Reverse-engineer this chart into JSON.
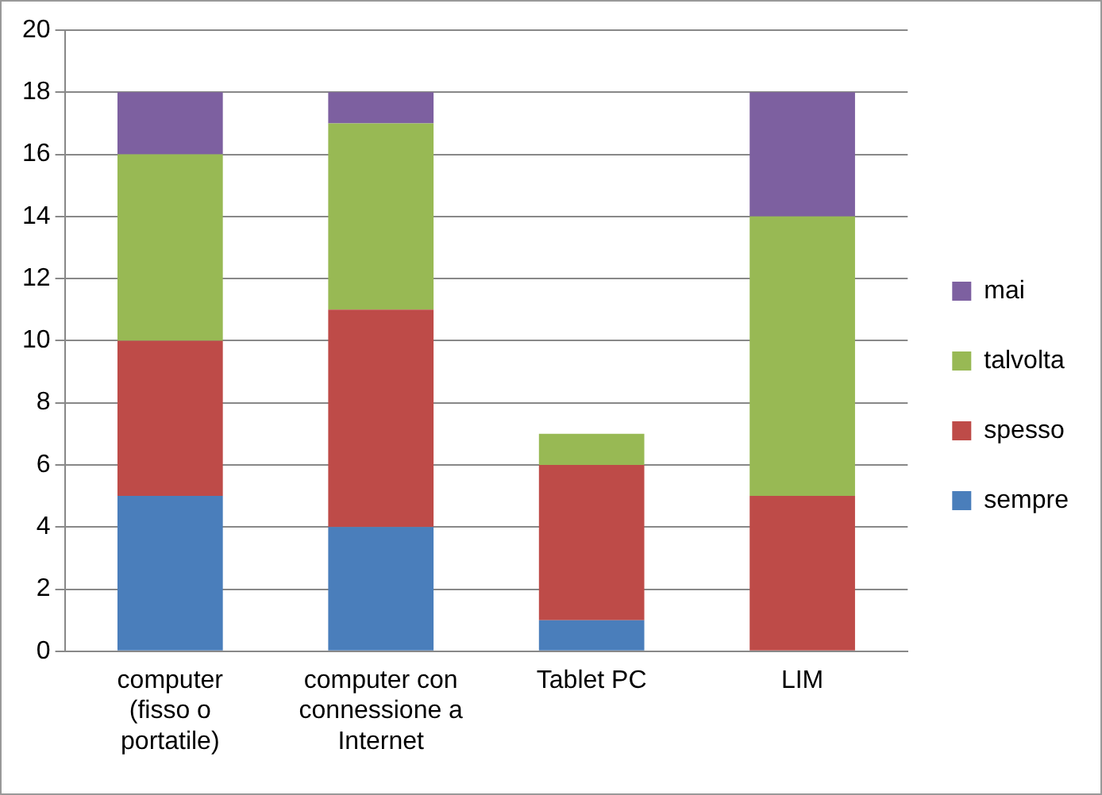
{
  "chart_data": {
    "type": "bar",
    "stacked": true,
    "categories": [
      "computer (fisso o portatile)",
      "computer con connessione a Internet",
      "Tablet PC",
      "LIM"
    ],
    "series": [
      {
        "name": "sempre",
        "color": "#4a7ebb",
        "values": [
          5,
          4,
          1,
          0
        ]
      },
      {
        "name": "spesso",
        "color": "#be4b48",
        "values": [
          5,
          7,
          5,
          5
        ]
      },
      {
        "name": "talvolta",
        "color": "#98b954",
        "values": [
          6,
          6,
          1,
          9
        ]
      },
      {
        "name": "mai",
        "color": "#7d60a0",
        "values": [
          2,
          1,
          0,
          4
        ]
      }
    ],
    "ylim": [
      0,
      20
    ],
    "yticks": [
      0,
      2,
      4,
      6,
      8,
      10,
      12,
      14,
      16,
      18,
      20
    ],
    "grid": "y",
    "legend": "right"
  }
}
